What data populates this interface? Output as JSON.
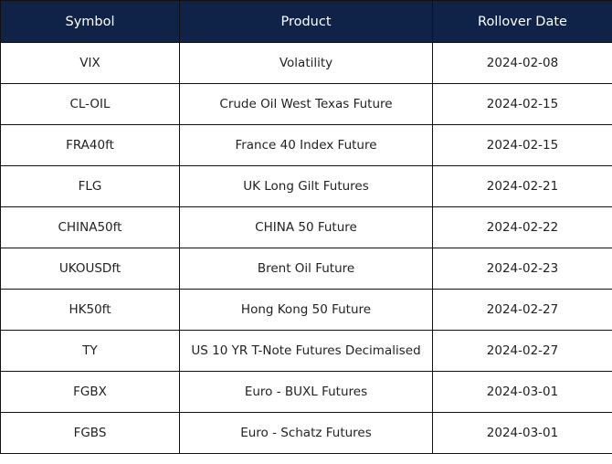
{
  "table": {
    "header": [
      "Symbol",
      "Product",
      "Rollover Date"
    ],
    "rows": [
      [
        "VIX",
        "Volatility",
        "2024-02-08"
      ],
      [
        "CL-OIL",
        "Crude Oil West Texas Future",
        "2024-02-15"
      ],
      [
        "FRA40ft",
        "France 40 Index Future",
        "2024-02-15"
      ],
      [
        "FLG",
        "UK Long Gilt Futures",
        "2024-02-21"
      ],
      [
        "CHINA50ft",
        "CHINA 50 Future",
        "2024-02-22"
      ],
      [
        "UKOUSDft",
        "Brent Oil Future",
        "2024-02-23"
      ],
      [
        "HK50ft",
        "Hong Kong 50 Future",
        "2024-02-27"
      ],
      [
        "TY",
        "US 10 YR T-Note Futures Decimalised",
        "2024-02-27"
      ],
      [
        "FGBX",
        "Euro - BUXL Futures",
        "2024-03-01"
      ],
      [
        "FGBS",
        "Euro - Schatz Futures",
        "2024-03-01"
      ]
    ]
  }
}
